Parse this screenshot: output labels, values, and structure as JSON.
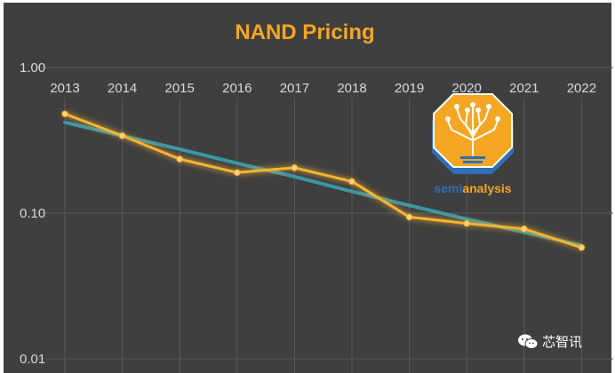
{
  "chart_data": {
    "type": "line",
    "title": "NAND Pricing",
    "xlabel": "",
    "ylabel": "",
    "yscale": "log",
    "ylim": [
      0.01,
      1.0
    ],
    "y_tick_labels": [
      "1.00",
      "0.10",
      "0.01"
    ],
    "y_ticks": [
      1.0,
      0.1,
      0.01
    ],
    "x_axis_position": "top",
    "grid": true,
    "legend": "none",
    "categories": [
      "2013",
      "2014",
      "2015",
      "2016",
      "2017",
      "2018",
      "2019",
      "2020",
      "2021",
      "2022"
    ],
    "series": [
      {
        "values": [
          0.48,
          0.34,
          0.235,
          0.19,
          0.205,
          0.165,
          0.094,
          0.085,
          0.078,
          0.058
        ],
        "color": "#f5b431",
        "style": "line-with-markers"
      },
      {
        "values": [
          0.42,
          0.34,
          0.275,
          0.22,
          0.178,
          0.141,
          0.113,
          0.091,
          0.074,
          0.06
        ],
        "color": "#3aa0b0",
        "style": "trendline"
      }
    ]
  },
  "logo": {
    "name": "semianalysis",
    "text_part1": "semi",
    "text_part2": "analysis",
    "color_primary": "#f5a623",
    "color_secondary": "#2e6fb5"
  },
  "watermark": {
    "icon": "wechat-icon",
    "text": "芯智讯"
  },
  "colors": {
    "background": "#3f3f3f",
    "grid": "#5a5a5a",
    "title": "#f5a623"
  }
}
